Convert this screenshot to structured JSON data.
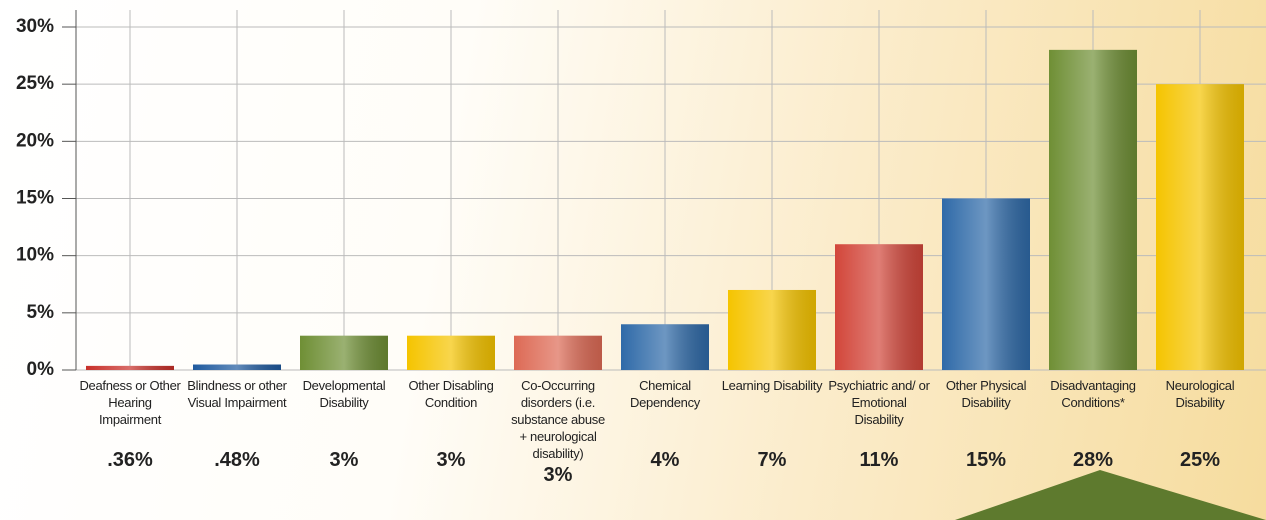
{
  "chart_data": {
    "type": "bar",
    "categories": [
      "Deafness or Other Hearing Impairment",
      "Blindness or other Visual Impairment",
      "Developmental Disability",
      "Other Disabling Condition",
      "Co-Occurring disorders (i.e. substance abuse + neurological disability)",
      "Chemical Dependency",
      "Learning Disability",
      "Psychiatric and/ or Emotional Disability",
      "Other Physical Disability",
      "Disadvantaging Conditions*",
      "Neurological Disability"
    ],
    "values": [
      0.36,
      0.48,
      3,
      3,
      3,
      4,
      7,
      11,
      15,
      28,
      25
    ],
    "value_labels": [
      ".36%",
      ".48%",
      "3%",
      "3%",
      "3%",
      "4%",
      "7%",
      "11%",
      "15%",
      "28%",
      "25%"
    ],
    "colors": [
      "#c8302a",
      "#1f5a9e",
      "#6f8f35",
      "#f5c400",
      "#dd6a55",
      "#2f6aa8",
      "#f5c400",
      "#d2463a",
      "#2f6aa8",
      "#6f8f35",
      "#f5c400"
    ],
    "ylim": [
      0,
      30
    ],
    "yticks": [
      {
        "value": 0,
        "label": "0%"
      },
      {
        "value": 5,
        "label": "5%"
      },
      {
        "value": 10,
        "label": "10%"
      },
      {
        "value": 15,
        "label": "15%"
      },
      {
        "value": 20,
        "label": "20%"
      },
      {
        "value": 25,
        "label": "25%"
      },
      {
        "value": 30,
        "label": "30%"
      }
    ],
    "grid": true
  }
}
